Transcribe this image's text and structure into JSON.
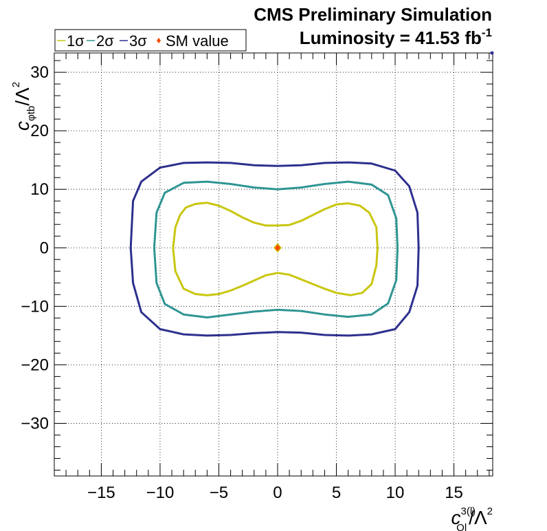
{
  "chart_data": {
    "type": "line",
    "header": {
      "line1": "CMS Preliminary Simulation",
      "line2_prefix": "Luminosity = 41.53 fb",
      "line2_sup": "-1"
    },
    "xlabel": {
      "main": "c",
      "sub": "Ql",
      "sup": "3(l)",
      "rest": "/Λ",
      "rest_sup": "2"
    },
    "ylabel": {
      "main": "c",
      "sub": "φtb",
      "rest": "/Λ",
      "rest_sup": "2"
    },
    "xlim": [
      -19,
      18.3
    ],
    "ylim": [
      -39,
      33.3
    ],
    "xticks": [
      -15,
      -10,
      -5,
      0,
      5,
      10,
      15
    ],
    "xtick_labels": [
      "−15",
      "−10",
      "−5",
      "0",
      "5",
      "10",
      "15"
    ],
    "yticks": [
      -30,
      -20,
      -10,
      0,
      10,
      20,
      30
    ],
    "ytick_labels": [
      "−30",
      "−20",
      "−10",
      "0",
      "10",
      "20",
      "30"
    ],
    "grid": true,
    "legend": {
      "placement": "top-left",
      "entries": [
        {
          "label": "1σ",
          "color": "#c9c60f"
        },
        {
          "label": "2σ",
          "color": "#2e9593"
        },
        {
          "label": "3σ",
          "color": "#2d2f8e"
        },
        {
          "label": "SM value",
          "color": "#ff4a00"
        }
      ]
    },
    "series": [
      {
        "name": "1σ",
        "color": "#c9c60f",
        "x": [
          0,
          1,
          2,
          3,
          4,
          5,
          6,
          7,
          7.8,
          8.4,
          8.5,
          8.4,
          8,
          7.2,
          6.2,
          5,
          4,
          3,
          2,
          1,
          0,
          -1,
          -2,
          -3,
          -4,
          -5,
          -6,
          -7,
          -8,
          -8.7,
          -8.9,
          -8.7,
          -8.3,
          -7.8,
          -7,
          -6,
          -5,
          -4,
          -3,
          -2,
          -1,
          0
        ],
        "y": [
          3.8,
          3.9,
          4.6,
          5.6,
          6.6,
          7.4,
          7.6,
          7.2,
          6,
          3.5,
          0,
          -3,
          -6.2,
          -7.7,
          -8.1,
          -7.7,
          -7,
          -6.2,
          -5.4,
          -4.6,
          -4.3,
          -4.7,
          -5.6,
          -6.5,
          -7.3,
          -7.9,
          -8.1,
          -7.9,
          -7,
          -4,
          0,
          3.5,
          5.6,
          6.9,
          7.5,
          7.7,
          7.2,
          6.3,
          5.2,
          4.3,
          3.8,
          3.8
        ]
      },
      {
        "name": "2σ",
        "color": "#2e9593",
        "x": [
          0,
          2,
          4,
          6,
          8,
          9.4,
          10.1,
          10.2,
          10.1,
          9.4,
          8,
          6,
          4,
          2,
          0,
          -2,
          -4,
          -6,
          -8,
          -9.6,
          -10.3,
          -10.5,
          -10.3,
          -9.6,
          -8,
          -6,
          -4,
          -2,
          0
        ],
        "y": [
          10,
          10.3,
          10.9,
          11.3,
          10.8,
          9,
          5,
          0,
          -5.5,
          -9.5,
          -11.4,
          -11.8,
          -11.4,
          -10.8,
          -10.6,
          -10.9,
          -11.4,
          -11.9,
          -11.4,
          -9.6,
          -6,
          0,
          6,
          9.4,
          11.1,
          11.3,
          10.9,
          10.3,
          10
        ]
      },
      {
        "name": "3σ",
        "color": "#2d2f8e",
        "x": [
          0,
          2,
          4,
          6,
          8,
          10,
          11.2,
          11.9,
          12,
          11.9,
          11.2,
          10,
          8,
          6,
          4,
          2,
          0,
          -2,
          -4,
          -6,
          -8,
          -10,
          -11.6,
          -12.3,
          -12.5,
          -12.3,
          -11.6,
          -10,
          -8,
          -6,
          -4,
          -2,
          0
        ],
        "y": [
          14,
          14.1,
          14.5,
          14.6,
          14.4,
          13.2,
          10.5,
          6,
          0,
          -6.5,
          -11,
          -13.9,
          -14.8,
          -15,
          -14.9,
          -14.5,
          -14.4,
          -14.6,
          -14.9,
          -15,
          -14.8,
          -13.9,
          -11,
          -6,
          0,
          8,
          11.3,
          13.7,
          14.5,
          14.6,
          14.5,
          14.1,
          14
        ]
      },
      {
        "name": "SM value",
        "color": "#ff4a00",
        "x": [
          0
        ],
        "y": [
          0
        ]
      }
    ]
  }
}
